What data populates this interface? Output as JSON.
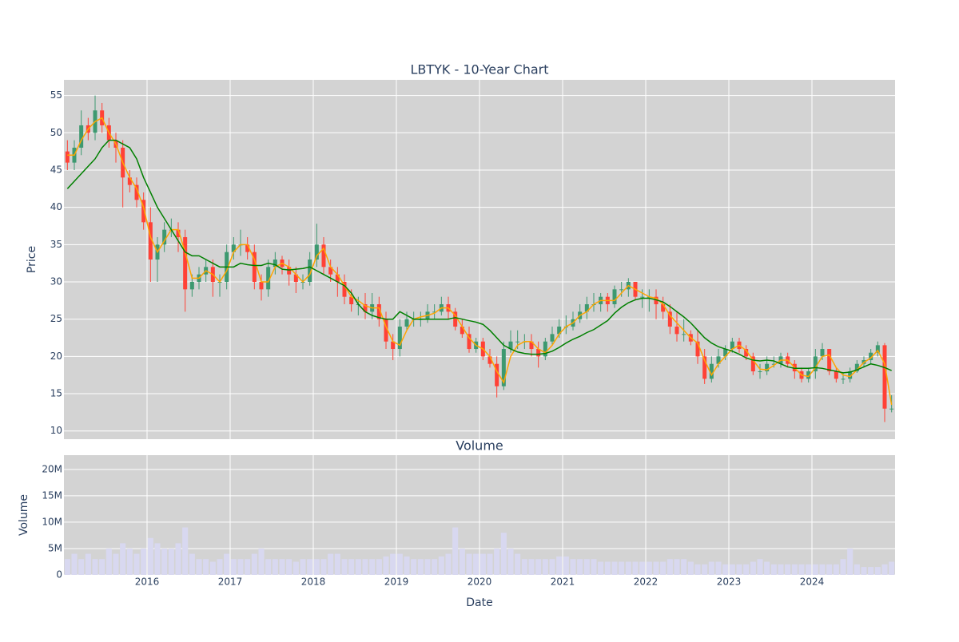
{
  "chart_data": [
    {
      "type": "candlestick",
      "title": "LBTYK - 10-Year Chart",
      "y_label": "Price",
      "x": [
        "2015-01",
        "2015-02",
        "2015-03",
        "2015-04",
        "2015-05",
        "2015-06",
        "2015-07",
        "2015-08",
        "2015-09",
        "2015-10",
        "2015-11",
        "2015-12",
        "2016-01",
        "2016-02",
        "2016-03",
        "2016-04",
        "2016-05",
        "2016-06",
        "2016-07",
        "2016-08",
        "2016-09",
        "2016-10",
        "2016-11",
        "2016-12",
        "2017-01",
        "2017-02",
        "2017-03",
        "2017-04",
        "2017-05",
        "2017-06",
        "2017-07",
        "2017-08",
        "2017-09",
        "2017-10",
        "2017-11",
        "2017-12",
        "2018-01",
        "2018-02",
        "2018-03",
        "2018-04",
        "2018-05",
        "2018-06",
        "2018-07",
        "2018-08",
        "2018-09",
        "2018-10",
        "2018-11",
        "2018-12",
        "2019-01",
        "2019-02",
        "2019-03",
        "2019-04",
        "2019-05",
        "2019-06",
        "2019-07",
        "2019-08",
        "2019-09",
        "2019-10",
        "2019-11",
        "2019-12",
        "2020-01",
        "2020-02",
        "2020-03",
        "2020-04",
        "2020-05",
        "2020-06",
        "2020-07",
        "2020-08",
        "2020-09",
        "2020-10",
        "2020-11",
        "2020-12",
        "2021-01",
        "2021-02",
        "2021-03",
        "2021-04",
        "2021-05",
        "2021-06",
        "2021-07",
        "2021-08",
        "2021-09",
        "2021-10",
        "2021-11",
        "2021-12",
        "2022-01",
        "2022-02",
        "2022-03",
        "2022-04",
        "2022-05",
        "2022-06",
        "2022-07",
        "2022-08",
        "2022-09",
        "2022-10",
        "2022-11",
        "2022-12",
        "2023-01",
        "2023-02",
        "2023-03",
        "2023-04",
        "2023-05",
        "2023-06",
        "2023-07",
        "2023-08",
        "2023-09",
        "2023-10",
        "2023-11",
        "2023-12",
        "2024-01",
        "2024-02",
        "2024-03",
        "2024-04",
        "2024-05",
        "2024-06",
        "2024-07",
        "2024-08",
        "2024-09",
        "2024-10",
        "2024-11",
        "2024-12"
      ],
      "open": [
        47.5,
        46,
        48,
        51,
        50,
        53,
        51,
        49,
        48,
        44,
        43,
        41,
        38,
        33,
        35,
        37,
        37,
        36,
        29,
        30,
        31,
        32,
        30,
        30,
        34,
        35,
        35,
        34,
        30,
        29,
        32,
        33,
        32,
        31,
        30,
        30,
        33,
        35,
        32,
        31,
        30,
        28,
        27,
        27,
        26,
        27,
        25,
        22,
        21,
        24,
        25,
        25,
        25,
        26,
        26,
        27,
        26,
        24,
        23,
        21,
        22,
        20,
        19,
        16,
        21,
        22,
        22,
        22,
        21,
        20,
        22,
        23,
        24,
        24,
        25,
        26,
        27,
        27,
        28,
        27,
        29,
        29,
        30,
        28,
        28,
        28,
        27,
        26,
        24,
        23,
        23,
        22,
        20,
        17,
        19,
        20,
        21,
        22,
        21,
        20,
        18,
        18,
        19,
        19,
        20,
        19,
        18,
        17,
        18,
        20,
        21,
        18,
        17,
        17,
        18,
        19,
        19.5,
        20.5,
        21.5,
        13
      ],
      "high": [
        49,
        49,
        53,
        52,
        55,
        54,
        52,
        50,
        49,
        45,
        44,
        42,
        40,
        36,
        38,
        38.5,
        38,
        37,
        31,
        32,
        33,
        33,
        31,
        35,
        36,
        37,
        36,
        35,
        31,
        33,
        34,
        33.5,
        33,
        32,
        31,
        34,
        37.8,
        36,
        33,
        32,
        31,
        29,
        28,
        28.5,
        28.5,
        28,
        26,
        23,
        25,
        26,
        26,
        26,
        27,
        27,
        28,
        28,
        26.5,
        25,
        24,
        22.5,
        22.5,
        21,
        20,
        22,
        23.5,
        23.5,
        23,
        23,
        22,
        22.5,
        24,
        25,
        25.5,
        26,
        27,
        28,
        28.5,
        28.5,
        28.5,
        29.5,
        30,
        30.5,
        30,
        29,
        29,
        29,
        28,
        27,
        26,
        25,
        23.5,
        23.5,
        21,
        20,
        21,
        21.5,
        22.5,
        22.5,
        21.5,
        20.5,
        19,
        20,
        20,
        20.5,
        20.5,
        19.5,
        18.5,
        18.5,
        21,
        21.8,
        21,
        18.5,
        17.8,
        18.5,
        19.5,
        20,
        21,
        22,
        21.8,
        14.8
      ],
      "low": [
        45,
        45,
        47,
        49,
        49,
        50,
        48,
        46,
        40,
        42,
        40,
        37,
        30,
        30,
        34,
        36,
        34,
        26,
        28,
        29,
        30,
        28,
        28,
        29,
        33,
        33.5,
        33,
        29,
        27.5,
        28,
        31,
        31,
        29.5,
        28.5,
        29,
        29.5,
        32,
        31,
        30,
        28,
        27,
        26,
        25.5,
        25,
        25,
        24,
        21,
        19.5,
        20,
        23.5,
        24,
        24,
        24.5,
        25,
        25.5,
        25,
        23.5,
        22.5,
        20.5,
        20.5,
        19.5,
        18.5,
        14.5,
        15.5,
        20.5,
        21,
        21,
        20,
        18.5,
        19.5,
        21.5,
        22.5,
        23,
        23.5,
        24.5,
        25,
        26,
        26,
        26,
        26.5,
        28,
        28,
        27.5,
        26.5,
        26,
        25,
        25,
        23,
        22,
        22,
        21.5,
        19,
        16.3,
        16.5,
        18.5,
        19.5,
        20.5,
        20.5,
        19.5,
        17.5,
        17,
        17.5,
        18.5,
        18.5,
        18.5,
        17,
        16.5,
        16.5,
        17,
        19.5,
        17.5,
        16.5,
        16.3,
        16.5,
        17.8,
        18.5,
        19,
        20,
        11.2,
        12.5
      ],
      "close": [
        46,
        48,
        51,
        50,
        53,
        51,
        49,
        48,
        44,
        43,
        41,
        38,
        33,
        35,
        37,
        37,
        36,
        29,
        30,
        31,
        32,
        30,
        30,
        34,
        35,
        35,
        34,
        30,
        29,
        32,
        33,
        32,
        31,
        30,
        30,
        33,
        35,
        32,
        31,
        30,
        28,
        27,
        27,
        26,
        27,
        25,
        22,
        21,
        24,
        25,
        25,
        25,
        26,
        26,
        27,
        26,
        24,
        23,
        21,
        22,
        20,
        19,
        16,
        21,
        22,
        22,
        22,
        21,
        20,
        22,
        23,
        24,
        24,
        25,
        26,
        27,
        27,
        28,
        27,
        29,
        29,
        30,
        28,
        28,
        28,
        27,
        26,
        24,
        23,
        23,
        22,
        20,
        17,
        19,
        20,
        21,
        22,
        21,
        20,
        18,
        18,
        19,
        19,
        20,
        19,
        18,
        17,
        18,
        20,
        21,
        18,
        17,
        17,
        18,
        19,
        19.5,
        20.5,
        21.5,
        13,
        13
      ],
      "up_color": "#3d9970",
      "down_color": "#ff4136",
      "series": [
        {
          "color": "#ffa500",
          "values": [
            47,
            47,
            49,
            50.5,
            51.5,
            52,
            50,
            48.5,
            46,
            44,
            42.5,
            40,
            36,
            34,
            35.5,
            37,
            37,
            34,
            30.5,
            30.5,
            31.5,
            31,
            30,
            31.5,
            34,
            35,
            35,
            33,
            30,
            30,
            32,
            32.5,
            32,
            31,
            30,
            31,
            33.5,
            34.5,
            32,
            31,
            29.5,
            28,
            27.5,
            26.8,
            26.5,
            26.5,
            24,
            22,
            21.5,
            23.5,
            25,
            25.3,
            25.5,
            25.8,
            26.5,
            26.5,
            25.5,
            24,
            22.5,
            21.5,
            21,
            20,
            18,
            16.5,
            20,
            21.5,
            22,
            22,
            21,
            20.5,
            21.5,
            23,
            24,
            24.5,
            25.5,
            26,
            27,
            27.5,
            27.5,
            27.5,
            28.5,
            29.5,
            29,
            28.5,
            28,
            27.8,
            27,
            25.5,
            24.5,
            23.5,
            22.5,
            21.8,
            19.5,
            17.5,
            19,
            20,
            21,
            21.5,
            20.8,
            19.5,
            18.3,
            18.2,
            18.8,
            19.5,
            19.5,
            18.5,
            17.5,
            17.3,
            18.5,
            20,
            20.2,
            18.5,
            17.5,
            17.3,
            18.2,
            19.2,
            19.8,
            20.8,
            19,
            13.5
          ]
        },
        {
          "color": "#008000",
          "values": [
            42.5,
            43.5,
            44.5,
            45.5,
            46.5,
            48,
            49,
            49,
            48.5,
            48,
            46.5,
            44,
            42,
            40,
            38.5,
            37,
            35.5,
            34,
            33.5,
            33.5,
            33,
            32.5,
            32,
            32,
            32,
            32.5,
            32.3,
            32.2,
            32.2,
            32.5,
            32.3,
            31.7,
            31.6,
            31.7,
            31.8,
            32,
            31.5,
            31,
            30.5,
            30,
            29.5,
            28.5,
            27,
            26,
            25.5,
            25.2,
            25,
            25,
            26,
            25.5,
            25,
            25,
            25,
            25,
            25,
            25,
            25.2,
            25,
            24.8,
            24.6,
            24.3,
            23.5,
            22.5,
            21.5,
            21,
            20.6,
            20.4,
            20.3,
            20.3,
            20.4,
            20.7,
            21.2,
            21.8,
            22.3,
            22.7,
            23.2,
            23.6,
            24.2,
            24.8,
            25.8,
            26.6,
            27.2,
            27.6,
            27.8,
            27.8,
            27.6,
            27.3,
            26.7,
            26,
            25.3,
            24.5,
            23.5,
            22.5,
            21.8,
            21.3,
            21,
            20.7,
            20.3,
            19.8,
            19.5,
            19.4,
            19.5,
            19.4,
            19,
            18.6,
            18.4,
            18.4,
            18.4,
            18.5,
            18.4,
            18.2,
            18,
            17.8,
            17.9,
            18.2,
            18.6,
            19,
            18.8,
            18.5,
            18.1
          ]
        }
      ],
      "xlim": [
        2015,
        2025
      ],
      "xticks": [
        2016,
        2017,
        2018,
        2019,
        2020,
        2021,
        2022,
        2023,
        2024
      ],
      "ylim": [
        8.9,
        57.1
      ],
      "yticks": [
        10,
        15,
        20,
        25,
        30,
        35,
        40,
        45,
        50,
        55
      ],
      "grid": true
    },
    {
      "type": "bar",
      "title": "Volume",
      "y_label": "Volume",
      "x_label": "Date",
      "color": "#d8d8f0",
      "x": [
        "2015-01",
        "2015-02",
        "2015-03",
        "2015-04",
        "2015-05",
        "2015-06",
        "2015-07",
        "2015-08",
        "2015-09",
        "2015-10",
        "2015-11",
        "2015-12",
        "2016-01",
        "2016-02",
        "2016-03",
        "2016-04",
        "2016-05",
        "2016-06",
        "2016-07",
        "2016-08",
        "2016-09",
        "2016-10",
        "2016-11",
        "2016-12",
        "2017-01",
        "2017-02",
        "2017-03",
        "2017-04",
        "2017-05",
        "2017-06",
        "2017-07",
        "2017-08",
        "2017-09",
        "2017-10",
        "2017-11",
        "2017-12",
        "2018-01",
        "2018-02",
        "2018-03",
        "2018-04",
        "2018-05",
        "2018-06",
        "2018-07",
        "2018-08",
        "2018-09",
        "2018-10",
        "2018-11",
        "2018-12",
        "2019-01",
        "2019-02",
        "2019-03",
        "2019-04",
        "2019-05",
        "2019-06",
        "2019-07",
        "2019-08",
        "2019-09",
        "2019-10",
        "2019-11",
        "2019-12",
        "2020-01",
        "2020-02",
        "2020-03",
        "2020-04",
        "2020-05",
        "2020-06",
        "2020-07",
        "2020-08",
        "2020-09",
        "2020-10",
        "2020-11",
        "2020-12",
        "2021-01",
        "2021-02",
        "2021-03",
        "2021-04",
        "2021-05",
        "2021-06",
        "2021-07",
        "2021-08",
        "2021-09",
        "2021-10",
        "2021-11",
        "2021-12",
        "2022-01",
        "2022-02",
        "2022-03",
        "2022-04",
        "2022-05",
        "2022-06",
        "2022-07",
        "2022-08",
        "2022-09",
        "2022-10",
        "2022-11",
        "2022-12",
        "2023-01",
        "2023-02",
        "2023-03",
        "2023-04",
        "2023-05",
        "2023-06",
        "2023-07",
        "2023-08",
        "2023-09",
        "2023-10",
        "2023-11",
        "2023-12",
        "2024-01",
        "2024-02",
        "2024-03",
        "2024-04",
        "2024-05",
        "2024-06",
        "2024-07",
        "2024-08",
        "2024-09",
        "2024-10",
        "2024-11",
        "2024-12"
      ],
      "values": [
        3,
        4,
        3,
        4,
        3,
        3,
        5,
        4,
        6,
        5,
        4,
        5,
        7,
        6,
        5,
        5,
        6,
        9,
        4,
        3,
        3,
        2.5,
        3,
        4,
        3,
        3,
        3,
        4,
        5,
        3,
        3,
        3,
        3,
        2.5,
        3,
        3,
        3,
        3,
        4,
        4,
        3,
        3,
        3,
        3,
        3,
        3,
        3.5,
        4,
        4,
        3.5,
        3,
        3,
        3,
        3,
        3.5,
        4,
        9,
        5,
        4,
        4,
        4,
        4,
        5,
        8,
        5,
        4,
        3,
        3,
        3,
        3,
        3,
        3.5,
        3.5,
        3,
        3,
        3,
        3,
        2.5,
        2.5,
        2.5,
        2.5,
        2.5,
        2.5,
        2.5,
        2.5,
        2.5,
        2.5,
        3,
        3,
        3,
        2.5,
        2,
        2,
        2.5,
        2.5,
        2,
        2,
        2,
        2,
        2.5,
        3,
        2.5,
        2,
        2,
        2,
        2,
        2,
        2,
        2,
        2,
        2,
        2,
        3,
        5,
        2,
        1.5,
        1.5,
        1.5,
        2,
        2.5
      ],
      "xlim": [
        2015,
        2025
      ],
      "xticks": [
        2016,
        2017,
        2018,
        2019,
        2020,
        2021,
        2022,
        2023,
        2024
      ],
      "ylim": [
        0,
        22.7
      ],
      "yticks": [
        0,
        {
          "value": 5,
          "label": "5M"
        },
        {
          "value": 10,
          "label": "10M"
        },
        {
          "value": 15,
          "label": "15M"
        },
        {
          "value": 20,
          "label": "20M"
        }
      ],
      "grid": true
    }
  ]
}
